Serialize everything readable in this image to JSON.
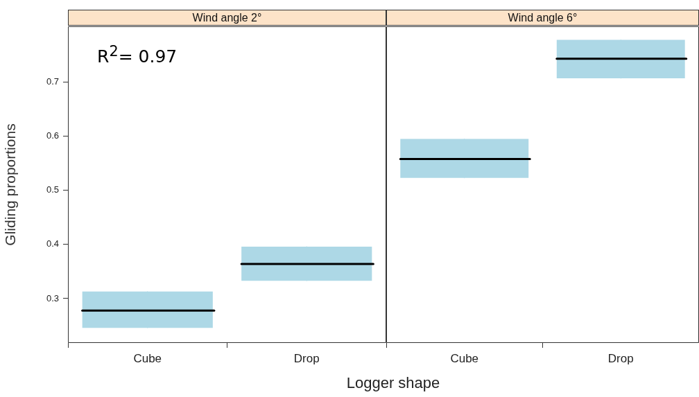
{
  "chart_data": [
    {
      "type": "box",
      "title": "Wind angle 2°",
      "xlabel": "Logger shape",
      "ylabel": "Gliding proportions",
      "annotations": [
        "R$^{2}$= 0.97"
      ],
      "categories": [
        "Cube",
        "Drop"
      ],
      "color": "#add8e6",
      "boxes": [
        {
          "low": 0.246,
          "q1": 0.246,
          "median": 0.278,
          "q3": 0.313,
          "high": 0.313
        },
        {
          "low": 0.333,
          "q1": 0.333,
          "median": 0.364,
          "q3": 0.396,
          "high": 0.396
        }
      ],
      "ylim": [
        0.218,
        0.803
      ],
      "yticks": [
        0.3,
        0.4,
        0.5,
        0.6,
        0.7
      ]
    },
    {
      "type": "box",
      "title": "Wind angle 6°",
      "categories": [
        "Cube",
        "Drop"
      ],
      "color": "#add8e6",
      "boxes": [
        {
          "low": 0.523,
          "q1": 0.523,
          "median": 0.558,
          "q3": 0.595,
          "high": 0.595
        },
        {
          "low": 0.707,
          "q1": 0.707,
          "median": 0.743,
          "q3": 0.778,
          "high": 0.778
        }
      ],
      "ylim": [
        0.218,
        0.803
      ],
      "tick_labels": "x"
    }
  ]
}
